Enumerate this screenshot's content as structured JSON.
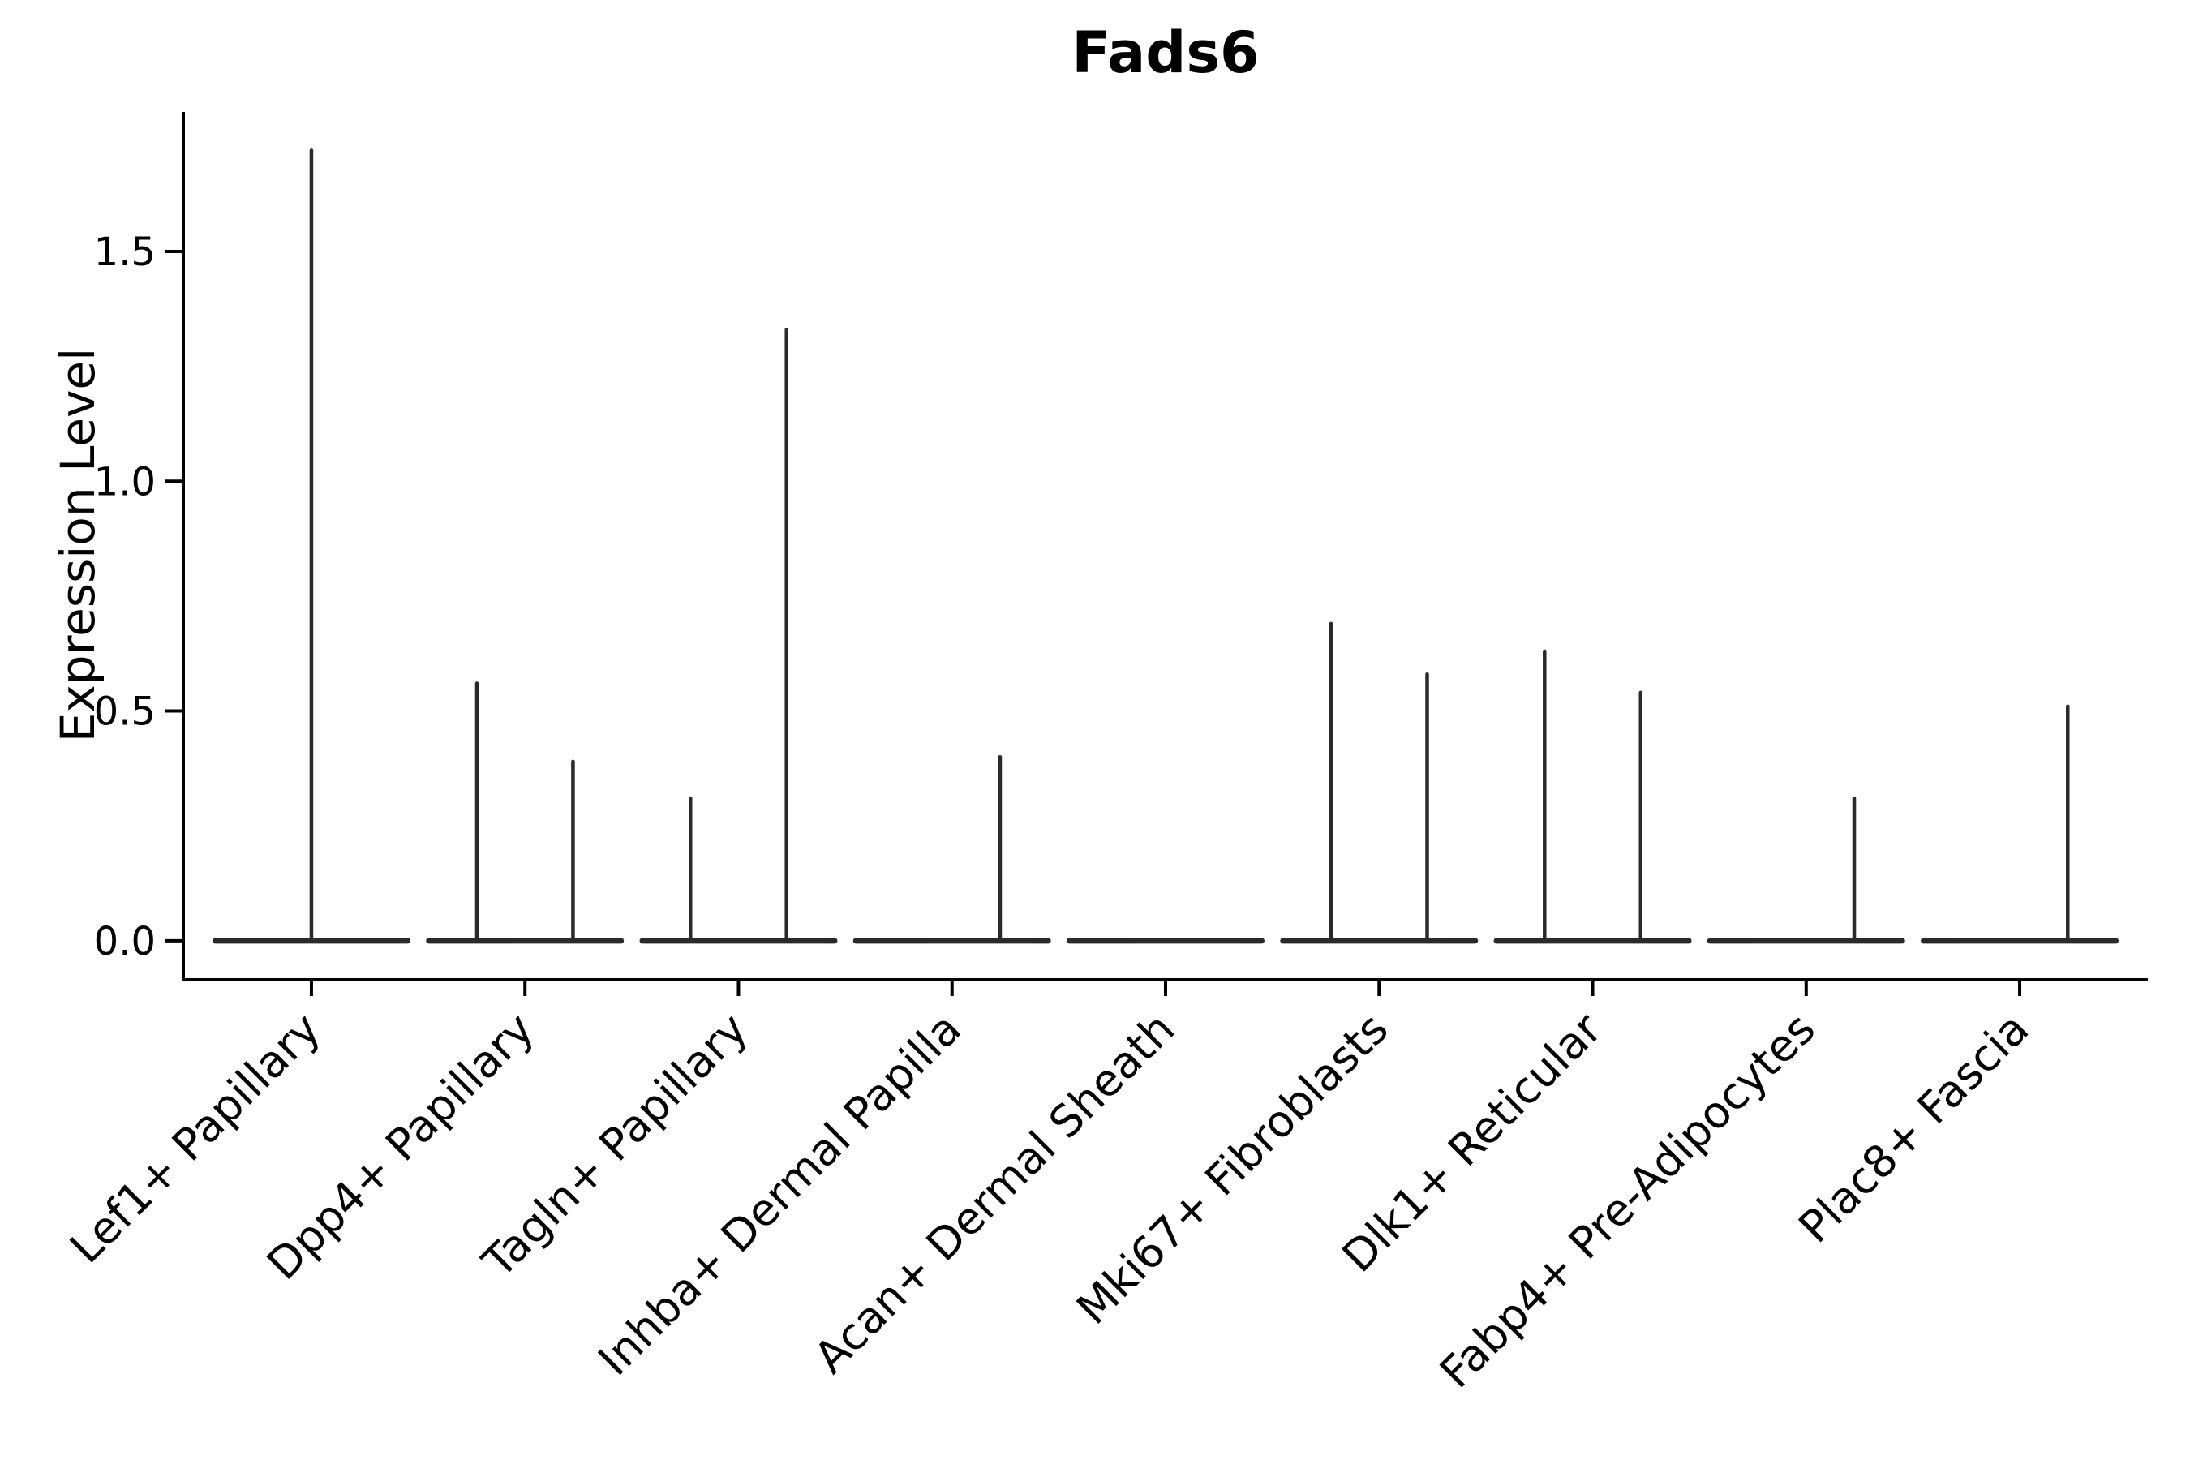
{
  "figure": {
    "title": "Fads6"
  },
  "colors": {
    "violin": "#2a2a2a",
    "axis": "#000000",
    "text": "#000000",
    "background": "#ffffff"
  },
  "chart_data": {
    "type": "violin",
    "title": "Fads6",
    "xlabel": "",
    "ylabel": "Expression Level",
    "yticks": [
      0.0,
      0.5,
      1.0,
      1.5
    ],
    "ytick_labels": [
      "0.0",
      "0.5",
      "1.0",
      "1.5"
    ],
    "ylim": [
      -0.085,
      1.8
    ],
    "grid": false,
    "legend": "none",
    "categories": [
      "Lef1+ Papillary",
      "Dpp4+ Papillary",
      "Tagln+ Papillary",
      "Inhba+ Dermal Papilla",
      "Acan+ Dermal Sheath",
      "Mki67+ Fibroblasts",
      "Dlk1+ Reticular",
      "Fabp4+ Pre-Adipocytes",
      "Plac8+ Fascia"
    ],
    "baseline_halfwidth_frac": 0.45,
    "violins": [
      {
        "category": "Lef1+ Papillary",
        "spikes": [
          {
            "offset": 0.0,
            "max": 1.72
          }
        ]
      },
      {
        "category": "Dpp4+ Papillary",
        "spikes": [
          {
            "offset": -0.225,
            "max": 0.56
          },
          {
            "offset": 0.225,
            "max": 0.39
          }
        ]
      },
      {
        "category": "Tagln+ Papillary",
        "spikes": [
          {
            "offset": -0.225,
            "max": 0.31
          },
          {
            "offset": 0.225,
            "max": 1.33
          }
        ]
      },
      {
        "category": "Inhba+ Dermal Papilla",
        "spikes": [
          {
            "offset": 0.225,
            "max": 0.4
          }
        ]
      },
      {
        "category": "Acan+ Dermal Sheath",
        "spikes": []
      },
      {
        "category": "Mki67+ Fibroblasts",
        "spikes": [
          {
            "offset": -0.225,
            "max": 0.69
          },
          {
            "offset": 0.225,
            "max": 0.58
          }
        ]
      },
      {
        "category": "Dlk1+ Reticular",
        "spikes": [
          {
            "offset": -0.225,
            "max": 0.63
          },
          {
            "offset": 0.225,
            "max": 0.54
          }
        ]
      },
      {
        "category": "Fabp4+ Pre-Adipocytes",
        "spikes": [
          {
            "offset": 0.225,
            "max": 0.31
          }
        ]
      },
      {
        "category": "Plac8+ Fascia",
        "spikes": [
          {
            "offset": 0.225,
            "max": 0.51
          }
        ]
      }
    ]
  }
}
